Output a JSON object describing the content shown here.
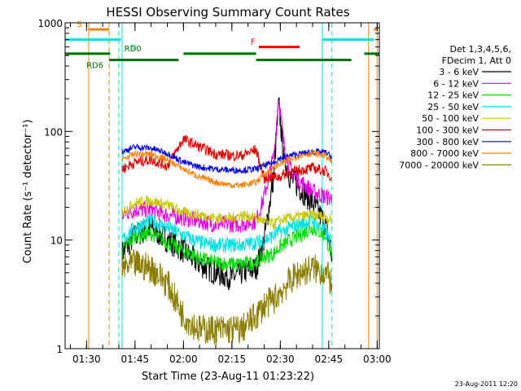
{
  "chart_data": {
    "type": "line",
    "title": "HESSI Observing Summary Count Rates",
    "xlabel": "Start Time (23-Aug-11 01:23:22)",
    "ylabel": "Count Rate (s⁻¹ detector⁻¹)",
    "xlim": [
      "01:23:22",
      "03:00:40"
    ],
    "ylim": [
      1,
      1000
    ],
    "yscale": "log",
    "x_ticks": [
      "01:30",
      "01:45",
      "02:00",
      "02:15",
      "02:30",
      "02:45",
      "03:00"
    ],
    "y_ticks": [
      "1",
      "10",
      "100",
      "1000"
    ],
    "grid": false,
    "legend_position": "right",
    "legend_header": [
      "Det 1,3,4,5,6,",
      "FDecim 1, Att 0"
    ],
    "timestamp": "23-Aug-2011 12:20",
    "flag_labels": {
      "saa": "S",
      "night": "N",
      "flare": "F",
      "rd0": "RD0",
      "rd6": "RD6"
    },
    "flag_intervals": {
      "saa": [
        [
          "01:30:40",
          "01:37:00"
        ],
        [
          "02:59:00",
          "03:00:00"
        ]
      ],
      "night": [
        [
          "01:23:22",
          "01:40:40"
        ],
        [
          "02:43:10",
          "02:59:00"
        ]
      ],
      "flare": [
        [
          "02:23:20",
          "02:36:00"
        ]
      ],
      "rd0": [
        [
          "01:23:22",
          "01:37:20"
        ],
        [
          "02:00:00",
          "02:22:30"
        ],
        [
          "02:56:00",
          "03:00:40"
        ]
      ],
      "rd6": [
        [
          "01:37:00",
          "01:58:30"
        ],
        [
          "02:22:30",
          "02:52:00"
        ]
      ]
    },
    "vertical_markers": {
      "saa_bounds": [
        "01:30:40",
        "02:57:20",
        "03:00:00"
      ],
      "saa_dashed": [
        "01:37:00"
      ],
      "night_bounds": [
        "01:41:00",
        "02:43:00"
      ],
      "night_dashed": [
        "01:40:00",
        "02:46:00"
      ]
    },
    "x_key": [
      "01:41:00",
      "01:45:00",
      "01:50:00",
      "01:55:00",
      "02:00:00",
      "02:05:00",
      "02:10:00",
      "02:15:00",
      "02:18:00",
      "02:22:30",
      "02:25:00",
      "02:28:00",
      "02:29:30",
      "02:31:00",
      "02:33:00",
      "02:36:00",
      "02:40:00",
      "02:44:00",
      "02:46:00"
    ],
    "series": [
      {
        "name": "3 - 6 keV",
        "color": "#000000",
        "values": [
          7.5,
          11,
          13,
          10,
          8,
          6,
          5,
          4.5,
          5,
          5.5,
          10,
          40,
          180,
          60,
          38,
          30,
          22,
          14,
          7
        ]
      },
      {
        "name": "6 - 12 keV",
        "color": "#e000e0",
        "values": [
          17,
          19,
          19,
          17,
          16,
          15,
          14,
          14,
          14,
          15,
          25,
          60,
          210,
          80,
          45,
          35,
          28,
          25,
          24
        ]
      },
      {
        "name": "12 - 25 keV",
        "color": "#00dd00",
        "values": [
          8,
          11,
          11.5,
          9.5,
          8,
          6.8,
          6.2,
          6,
          6,
          6.2,
          7,
          7.5,
          8.5,
          9,
          10,
          11,
          13,
          11,
          7
        ]
      },
      {
        "name": "25 - 50 keV",
        "color": "#00e0e0",
        "values": [
          10,
          13,
          15,
          13,
          11,
          9.5,
          9,
          9,
          9,
          9.5,
          10,
          11,
          12,
          12,
          13,
          14,
          15,
          12,
          9
        ]
      },
      {
        "name": "50 - 100 keV",
        "color": "#c8c800",
        "values": [
          18,
          22,
          23,
          21,
          18,
          17,
          16,
          16,
          17,
          16,
          15,
          14,
          15,
          15.5,
          16,
          16.5,
          17,
          16.5,
          15
        ]
      },
      {
        "name": "100 - 300 keV",
        "color": "#e00000",
        "values": [
          45,
          52,
          55,
          48,
          85,
          72,
          62,
          60,
          60,
          68,
          37,
          38,
          38,
          40,
          42,
          44,
          46,
          43,
          38
        ]
      },
      {
        "name": "300 - 800 keV",
        "color": "#0000e0",
        "values": [
          65,
          72,
          70,
          63,
          52,
          47,
          45,
          44,
          44,
          45,
          48,
          52,
          56,
          58,
          60,
          62,
          65,
          64,
          58
        ]
      },
      {
        "name": "800 - 7000 keV",
        "color": "#ff8000",
        "values": [
          55,
          62,
          62,
          55,
          45,
          38,
          34,
          32,
          32,
          34,
          40,
          46,
          50,
          52,
          55,
          60,
          63,
          60,
          52
        ]
      },
      {
        "name": "7000 - 20000 keV",
        "color": "#8b7d00",
        "values": [
          5.5,
          6,
          5.5,
          4,
          2,
          1.5,
          1.5,
          1.5,
          1.5,
          2,
          2.5,
          2.8,
          3.2,
          3.6,
          4.2,
          5,
          5.5,
          5,
          4
        ]
      }
    ]
  }
}
